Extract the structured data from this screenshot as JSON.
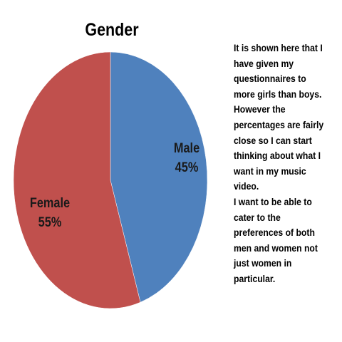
{
  "chart_data": {
    "type": "pie",
    "title": "Gender",
    "slices": [
      {
        "label": "Male",
        "value": 45,
        "display": "45%",
        "color": "#4F81BD"
      },
      {
        "label": "Female",
        "value": 55,
        "display": "55%",
        "color": "#C0504D"
      }
    ],
    "legend": "none"
  },
  "commentary": {
    "lines": [
      "It is shown here that I",
      "have given my",
      "questionnaires to",
      "more girls than boys.",
      "However the",
      "percentages are fairly",
      "close so I can start",
      "thinking about what I",
      "want in my music",
      "video.",
      "I want to be able to",
      "cater to the",
      "preferences of both",
      "men and women not",
      "just women in",
      "particular."
    ]
  }
}
